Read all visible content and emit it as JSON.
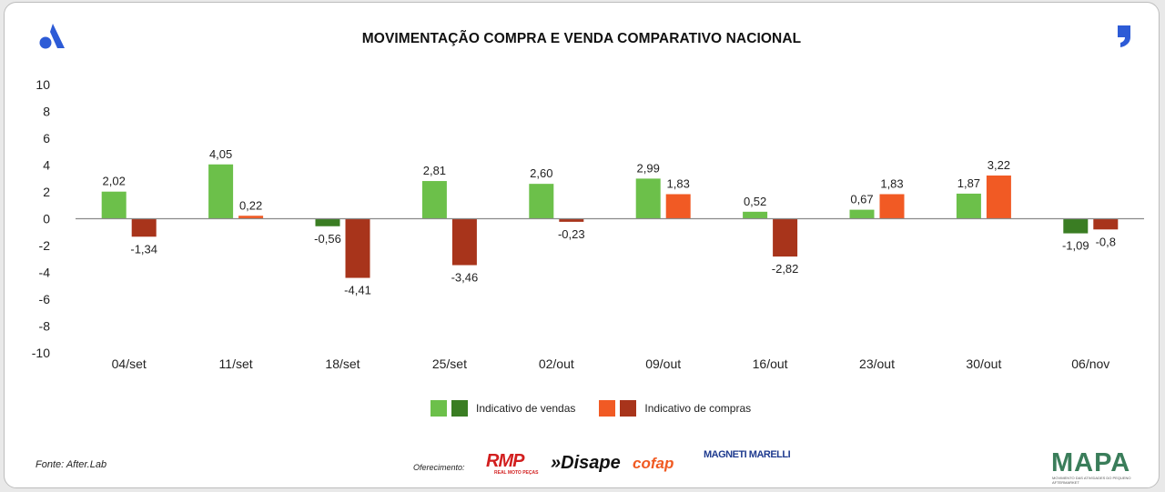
{
  "title": "MOVIMENTAÇÃO COMPRA E VENDA COMPARATIVO NACIONAL",
  "colors": {
    "vendas_pos": "#6cc04a",
    "vendas_neg": "#3a7d23",
    "compras_pos": "#f15a24",
    "compras_neg": "#a8341b",
    "axis": "#8a8a8a"
  },
  "chart_data": {
    "type": "bar",
    "categories": [
      "04/set",
      "11/set",
      "18/set",
      "25/set",
      "02/out",
      "09/out",
      "16/out",
      "23/out",
      "30/out",
      "06/nov"
    ],
    "series": [
      {
        "name": "Indicativo de vendas",
        "values": [
          2.02,
          4.05,
          -0.56,
          2.81,
          2.6,
          2.99,
          0.52,
          0.67,
          1.87,
          -1.09
        ],
        "labels": [
          "2,02",
          "4,05",
          "-0,56",
          "2,81",
          "2,60",
          "2,99",
          "0,52",
          "0,67",
          "1,87",
          "-1,09"
        ]
      },
      {
        "name": "Indicativo de compras",
        "values": [
          -1.34,
          0.22,
          -4.41,
          -3.46,
          -0.23,
          1.83,
          -2.82,
          1.83,
          3.22,
          -0.8
        ],
        "labels": [
          "-1,34",
          "0,22",
          "-4,41",
          "-3,46",
          "-0,23",
          "1,83",
          "-2,82",
          "1,83",
          "3,22",
          "-0,8"
        ]
      }
    ],
    "ylim": [
      -10,
      10
    ],
    "yticks": [
      10,
      8,
      6,
      4,
      2,
      0,
      -2,
      -4,
      -6,
      -8,
      -10
    ],
    "ytick_labels": [
      "10",
      "8",
      "6",
      "4",
      "2",
      "0",
      "-2",
      "-4",
      "-6",
      "-8",
      "-10"
    ],
    "grid": false,
    "legend_position": "bottom"
  },
  "legend": {
    "vendas_label": "Indicativo de vendas",
    "compras_label": "Indicativo de compras"
  },
  "footer": {
    "fonte": "Fonte: After.Lab",
    "oferecimento": "Oferecimento:",
    "sponsors": [
      "RMP",
      "REAL MOTO PEÇAS",
      "»Disape",
      "cofap",
      "MAGNETI MARELLI"
    ],
    "mapa": "MAPA",
    "mapa_sub": "MOVIMENTO DAS ATIVIDADES DO PEQUENO AFTERMARKET"
  }
}
